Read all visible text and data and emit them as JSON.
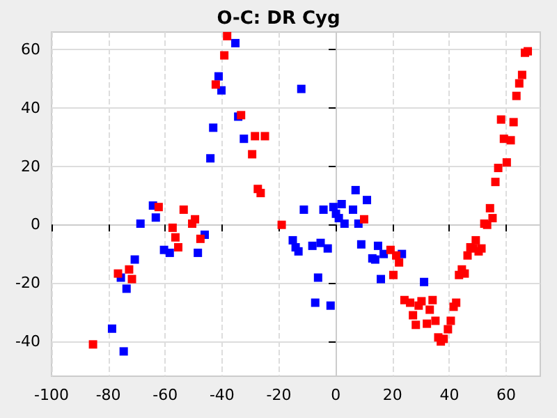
{
  "chart_data": {
    "type": "scatter",
    "title": "O-C: DR Cyg",
    "marker": "square",
    "grid": true,
    "xlim": [
      -100,
      72
    ],
    "xticks": [
      -100,
      -80,
      -60,
      -40,
      -20,
      0,
      20,
      40,
      60
    ],
    "ylim": [
      -52,
      66
    ],
    "yticks": [
      -40,
      -20,
      0,
      20,
      40,
      60
    ],
    "series": [
      {
        "color": "#0000ff",
        "x": [
          -78.7,
          -74.6,
          -75.6,
          -73.6,
          -70.7,
          -68.7,
          -64.3,
          -63.3,
          -60.4,
          -58.4,
          -48.5,
          -46.1,
          -44.1,
          -43.1,
          -41.2,
          -40.2,
          -35.3,
          -34.3,
          -32.3,
          -12.1,
          -15.1,
          -14.1,
          -13.1,
          -11.2,
          -8.2,
          -7.2,
          -6.2,
          -5.3,
          -4.3,
          -2.8,
          -1.8,
          -0.8,
          0.1,
          1.1,
          2.1,
          3.1,
          6.1,
          7.0,
          8.0,
          9.0,
          11.0,
          12.9,
          13.9,
          14.9,
          15.9,
          16.9,
          23.3,
          31.1
        ],
        "values": [
          -35.7,
          -43.5,
          -18.2,
          -22.0,
          -12.0,
          0.3,
          6.5,
          2.4,
          -8.7,
          -9.7,
          -9.7,
          -3.5,
          22.7,
          33.2,
          50.8,
          46.0,
          62.2,
          37.0,
          29.4,
          46.5,
          -5.4,
          -7.8,
          -9.2,
          5.1,
          -7.3,
          -26.8,
          -18.2,
          -6.3,
          5.1,
          -8.2,
          -27.8,
          6.0,
          3.7,
          2.2,
          7.0,
          0.3,
          5.1,
          11.8,
          0.3,
          -6.8,
          8.4,
          -11.6,
          -12.0,
          -7.3,
          -18.7,
          -10.1,
          -10.1,
          -19.7
        ]
      },
      {
        "color": "#ff0000",
        "x": [
          -85.4,
          -76.6,
          -72.7,
          -71.7,
          -62.3,
          -57.4,
          -56.4,
          -55.4,
          -53.5,
          -50.5,
          -49.5,
          -47.6,
          -27.4,
          -26.4,
          -19.0,
          -38.2,
          -39.2,
          -42.2,
          -33.3,
          -28.4,
          -24.9,
          -29.4,
          10.0,
          19.3,
          21.3,
          22.3,
          20.3,
          24.2,
          26.2,
          27.2,
          28.2,
          29.2,
          30.2,
          32.1,
          33.1,
          34.1,
          35.1,
          36.1,
          37.0,
          38.0,
          39.5,
          40.5,
          41.5,
          42.4,
          43.4,
          44.4,
          45.4,
          46.4,
          47.4,
          48.4,
          49.3,
          50.3,
          51.3,
          52.3,
          53.3,
          54.3,
          55.2,
          56.2,
          57.2,
          60.2,
          59.2,
          61.6,
          58.2,
          62.6,
          63.6,
          64.6,
          65.6,
          66.6,
          67.6
        ],
        "values": [
          -41.1,
          -16.8,
          -15.4,
          -18.7,
          6.0,
          -1.1,
          -4.4,
          -7.8,
          5.1,
          0.3,
          1.8,
          -4.9,
          12.2,
          10.8,
          -0.1,
          64.6,
          58.0,
          48.0,
          37.5,
          30.3,
          30.3,
          24.1,
          1.8,
          -8.7,
          -10.6,
          -13.0,
          -17.3,
          -25.9,
          -26.8,
          -31.1,
          -34.4,
          -27.8,
          -26.3,
          -34.0,
          -29.2,
          -25.9,
          -33.0,
          -38.7,
          -40.1,
          -39.2,
          -35.9,
          -33.0,
          -28.2,
          -26.8,
          -17.3,
          -15.4,
          -16.8,
          -10.6,
          -7.8,
          -8.2,
          -5.4,
          -9.2,
          -8.2,
          0.3,
          -0.1,
          5.6,
          2.2,
          14.6,
          19.4,
          21.3,
          29.4,
          28.9,
          36.0,
          35.1,
          44.1,
          48.4,
          51.3,
          58.9,
          59.4
        ]
      }
    ]
  }
}
